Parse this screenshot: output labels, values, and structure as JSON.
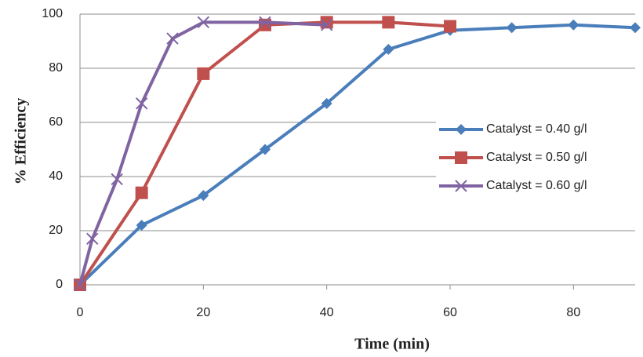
{
  "chart_data": {
    "type": "line",
    "x_label": "Time (min)",
    "y_label": "% Efficiency",
    "xlim": [
      0,
      90
    ],
    "xticks": [
      0,
      20,
      40,
      60,
      80
    ],
    "ylim": [
      0,
      100
    ],
    "yticks": [
      0,
      20,
      40,
      60,
      80,
      100
    ],
    "grid": true,
    "legend": "right",
    "series": [
      {
        "name": "Catalyst = 0.40 g/l",
        "color": "#4a7ebb",
        "marker": "diamond",
        "x": [
          0,
          10,
          20,
          30,
          40,
          50,
          60,
          70,
          80,
          90
        ],
        "values": [
          0,
          22,
          33,
          50,
          67,
          87,
          94,
          95,
          96,
          95
        ]
      },
      {
        "name": "Catalyst = 0.50 g/l",
        "color": "#c0504d",
        "marker": "square",
        "x": [
          0,
          10,
          20,
          30,
          40,
          50,
          60
        ],
        "values": [
          0,
          34,
          78,
          96,
          97,
          97,
          95.5
        ]
      },
      {
        "name": "Catalyst = 0.60 g/l",
        "color": "#8064a2",
        "marker": "cross",
        "x": [
          0,
          2,
          6,
          10,
          15,
          20,
          30,
          40
        ],
        "values": [
          0,
          17,
          39,
          67,
          91,
          97,
          97,
          96
        ]
      }
    ]
  }
}
